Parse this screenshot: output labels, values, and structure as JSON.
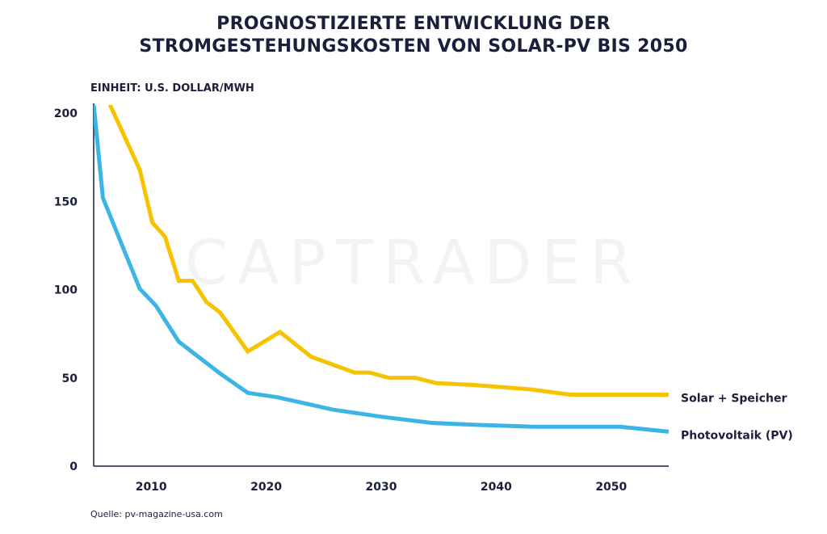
{
  "chart_data": {
    "type": "line",
    "title_line1": "PROGNOSTIZIERTE ENTWICKLUNG DER",
    "title_line2": "STROMGESTEHUNGSKOSTEN VON SOLAR-PV BIS 2050",
    "unit_label": "EINHEIT: U.S. DOLLAR/MWH",
    "source": "Quelle: pv-magazine-usa.com",
    "watermark": "CAPTRADER",
    "xlim": [
      2005,
      2055
    ],
    "ylim": [
      0,
      200
    ],
    "x_ticks": [
      2010,
      2020,
      2030,
      2040,
      2050
    ],
    "y_ticks": [
      0,
      50,
      100,
      150,
      200
    ],
    "series": [
      {
        "name": "Solar + Speicher",
        "color": "#f7c300",
        "points": [
          [
            2006.4,
            205
          ],
          [
            2009,
            168
          ],
          [
            2010.1,
            138
          ],
          [
            2011.2,
            130
          ],
          [
            2012.4,
            105
          ],
          [
            2013.6,
            105
          ],
          [
            2014.8,
            93
          ],
          [
            2016,
            87
          ],
          [
            2018.4,
            65
          ],
          [
            2021.2,
            76
          ],
          [
            2023.9,
            62
          ],
          [
            2027.7,
            53
          ],
          [
            2029,
            53
          ],
          [
            2030.7,
            50
          ],
          [
            2033,
            50
          ],
          [
            2034.8,
            47
          ],
          [
            2038,
            46
          ],
          [
            2041,
            44.5
          ],
          [
            2043,
            43.5
          ],
          [
            2046.4,
            40.5
          ],
          [
            2055,
            40.5
          ]
        ]
      },
      {
        "name": "Photovoltaik (PV)",
        "color": "#3cb4e5",
        "points": [
          [
            2005,
            205
          ],
          [
            2005.8,
            152
          ],
          [
            2009,
            100.5
          ],
          [
            2010.4,
            91
          ],
          [
            2012.4,
            70.5
          ],
          [
            2016,
            52.5
          ],
          [
            2018.4,
            41.5
          ],
          [
            2021,
            39
          ],
          [
            2025.8,
            32
          ],
          [
            2030,
            28
          ],
          [
            2034.4,
            24.5
          ],
          [
            2038,
            23.5
          ],
          [
            2043.3,
            22.3
          ],
          [
            2050.8,
            22.3
          ],
          [
            2055,
            19.5
          ]
        ]
      }
    ]
  }
}
